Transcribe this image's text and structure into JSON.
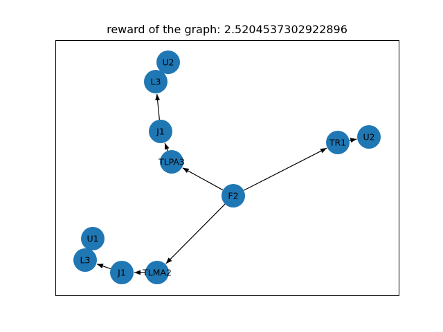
{
  "figure": {
    "title": "reward of the graph: 2.5204537302922896"
  },
  "graph": {
    "node_color": "#1f77b4",
    "edge_color": "#000000",
    "nodes": [
      {
        "id": "F2",
        "label": "F2"
      },
      {
        "id": "TLPA3",
        "label": "TLPA3"
      },
      {
        "id": "J1a",
        "label": "J1"
      },
      {
        "id": "L3a",
        "label": "L3"
      },
      {
        "id": "U2a",
        "label": "U2"
      },
      {
        "id": "TR1",
        "label": "TR1"
      },
      {
        "id": "U2b",
        "label": "U2"
      },
      {
        "id": "TLMA2",
        "label": "TLMA2"
      },
      {
        "id": "J1b",
        "label": "J1"
      },
      {
        "id": "L3b",
        "label": "L3"
      },
      {
        "id": "U1",
        "label": "U1"
      }
    ],
    "edges": [
      {
        "from": "F2",
        "to": "TLPA3"
      },
      {
        "from": "F2",
        "to": "TR1"
      },
      {
        "from": "F2",
        "to": "TLMA2"
      },
      {
        "from": "TLPA3",
        "to": "J1a"
      },
      {
        "from": "J1a",
        "to": "L3a"
      },
      {
        "from": "TR1",
        "to": "U2b"
      },
      {
        "from": "TLMA2",
        "to": "J1b"
      },
      {
        "from": "J1b",
        "to": "L3b"
      }
    ]
  }
}
